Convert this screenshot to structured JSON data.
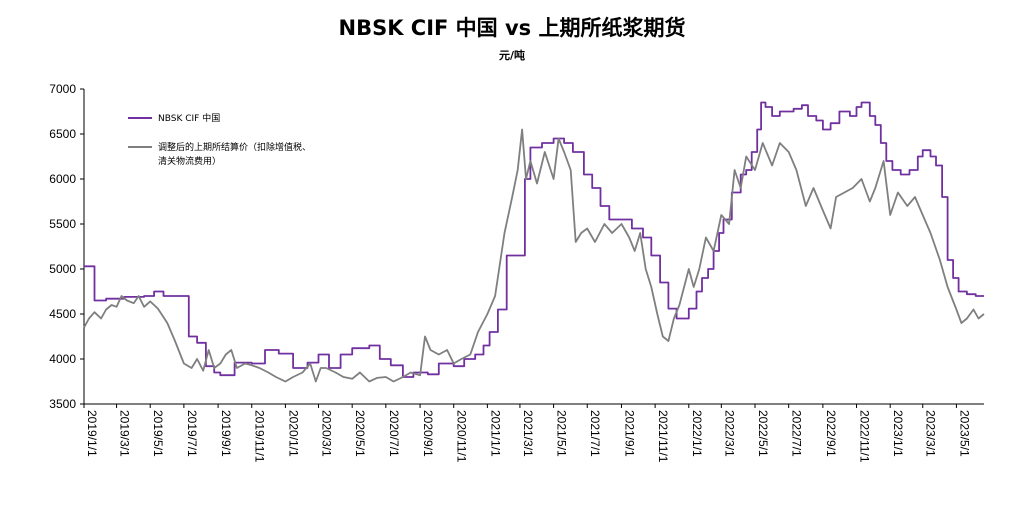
{
  "chart_data": {
    "type": "line",
    "title": "NBSK CIF 中国 vs 上期所纸浆期货",
    "unit_label": "元/吨",
    "xlabel": "",
    "ylabel": "",
    "ylim": [
      3500,
      7000
    ],
    "yticks": [
      3500,
      4000,
      4500,
      5000,
      5500,
      6000,
      6500,
      7000
    ],
    "xlim": [
      "2019-01-01",
      "2023-06-20"
    ],
    "xticks": [
      "2019/1/1",
      "2019/3/1",
      "2019/5/1",
      "2019/7/1",
      "2019/9/1",
      "2019/11/1",
      "2020/1/1",
      "2020/3/1",
      "2020/5/1",
      "2020/7/1",
      "2020/9/1",
      "2020/11/1",
      "2021/1/1",
      "2021/3/1",
      "2021/5/1",
      "2021/7/1",
      "2021/9/1",
      "2021/11/1",
      "2022/1/1",
      "2022/3/1",
      "2022/5/1",
      "2022/7/1",
      "2022/9/1",
      "2022/11/1",
      "2023/1/1",
      "2023/3/1",
      "2023/5/1"
    ],
    "grid": false,
    "legend_position": "top-left",
    "series": [
      {
        "name": "NBSK CIF 中国",
        "color": "#7030a0",
        "style": "step",
        "points": [
          [
            "2019-01-01",
            5030
          ],
          [
            "2019-01-20",
            4650
          ],
          [
            "2019-02-10",
            4670
          ],
          [
            "2019-03-15",
            4690
          ],
          [
            "2019-04-20",
            4700
          ],
          [
            "2019-05-08",
            4750
          ],
          [
            "2019-05-25",
            4700
          ],
          [
            "2019-06-15",
            4700
          ],
          [
            "2019-07-10",
            4250
          ],
          [
            "2019-07-25",
            4180
          ],
          [
            "2019-08-10",
            3920
          ],
          [
            "2019-08-25",
            3850
          ],
          [
            "2019-09-05",
            3820
          ],
          [
            "2019-10-01",
            3960
          ],
          [
            "2019-11-01",
            3950
          ],
          [
            "2019-11-25",
            4100
          ],
          [
            "2019-12-20",
            4060
          ],
          [
            "2020-01-15",
            3900
          ],
          [
            "2020-02-10",
            3960
          ],
          [
            "2020-03-01",
            4050
          ],
          [
            "2020-03-20",
            3900
          ],
          [
            "2020-04-10",
            4050
          ],
          [
            "2020-05-01",
            4120
          ],
          [
            "2020-06-01",
            4150
          ],
          [
            "2020-06-20",
            4000
          ],
          [
            "2020-07-10",
            3930
          ],
          [
            "2020-08-01",
            3800
          ],
          [
            "2020-08-20",
            3850
          ],
          [
            "2020-09-15",
            3830
          ],
          [
            "2020-10-05",
            3950
          ],
          [
            "2020-11-01",
            3920
          ],
          [
            "2020-11-20",
            4000
          ],
          [
            "2020-12-10",
            4050
          ],
          [
            "2020-12-25",
            4150
          ],
          [
            "2021-01-05",
            4300
          ],
          [
            "2021-01-20",
            4550
          ],
          [
            "2021-02-05",
            5150
          ],
          [
            "2021-02-20",
            5150
          ],
          [
            "2021-03-01",
            5150
          ],
          [
            "2021-03-10",
            6000
          ],
          [
            "2021-03-20",
            6350
          ],
          [
            "2021-04-10",
            6400
          ],
          [
            "2021-05-01",
            6450
          ],
          [
            "2021-05-20",
            6400
          ],
          [
            "2021-06-05",
            6300
          ],
          [
            "2021-06-25",
            6050
          ],
          [
            "2021-07-10",
            5900
          ],
          [
            "2021-07-25",
            5700
          ],
          [
            "2021-08-10",
            5550
          ],
          [
            "2021-09-01",
            5550
          ],
          [
            "2021-09-20",
            5450
          ],
          [
            "2021-10-10",
            5350
          ],
          [
            "2021-10-25",
            5150
          ],
          [
            "2021-11-10",
            4850
          ],
          [
            "2021-11-25",
            4560
          ],
          [
            "2021-12-10",
            4450
          ],
          [
            "2022-01-01",
            4560
          ],
          [
            "2022-01-15",
            4750
          ],
          [
            "2022-01-25",
            4900
          ],
          [
            "2022-02-05",
            5000
          ],
          [
            "2022-02-15",
            5200
          ],
          [
            "2022-02-25",
            5400
          ],
          [
            "2022-03-05",
            5550
          ],
          [
            "2022-03-20",
            5850
          ],
          [
            "2022-04-05",
            6050
          ],
          [
            "2022-04-15",
            6100
          ],
          [
            "2022-04-25",
            6300
          ],
          [
            "2022-05-05",
            6550
          ],
          [
            "2022-05-12",
            6850
          ],
          [
            "2022-05-20",
            6800
          ],
          [
            "2022-06-01",
            6700
          ],
          [
            "2022-06-15",
            6750
          ],
          [
            "2022-07-10",
            6780
          ],
          [
            "2022-07-25",
            6820
          ],
          [
            "2022-08-05",
            6700
          ],
          [
            "2022-08-20",
            6650
          ],
          [
            "2022-09-01",
            6550
          ],
          [
            "2022-09-15",
            6620
          ],
          [
            "2022-10-01",
            6750
          ],
          [
            "2022-10-20",
            6700
          ],
          [
            "2022-11-01",
            6800
          ],
          [
            "2022-11-10",
            6850
          ],
          [
            "2022-11-25",
            6700
          ],
          [
            "2022-12-05",
            6600
          ],
          [
            "2022-12-15",
            6400
          ],
          [
            "2022-12-25",
            6200
          ],
          [
            "2023-01-05",
            6100
          ],
          [
            "2023-01-20",
            6050
          ],
          [
            "2023-02-05",
            6100
          ],
          [
            "2023-02-20",
            6250
          ],
          [
            "2023-03-01",
            6320
          ],
          [
            "2023-03-15",
            6250
          ],
          [
            "2023-03-25",
            6150
          ],
          [
            "2023-04-05",
            5800
          ],
          [
            "2023-04-15",
            5100
          ],
          [
            "2023-04-25",
            4900
          ],
          [
            "2023-05-05",
            4750
          ],
          [
            "2023-05-20",
            4720
          ],
          [
            "2023-06-05",
            4700
          ],
          [
            "2023-06-20",
            4700
          ]
        ]
      },
      {
        "name": "调整后的上期所结算价（扣除增值税、清关物流费用）",
        "color": "#7f7f7f",
        "style": "line",
        "points": [
          [
            "2019-01-01",
            4350
          ],
          [
            "2019-01-10",
            4450
          ],
          [
            "2019-01-20",
            4520
          ],
          [
            "2019-02-01",
            4450
          ],
          [
            "2019-02-10",
            4550
          ],
          [
            "2019-02-20",
            4600
          ],
          [
            "2019-03-01",
            4580
          ],
          [
            "2019-03-10",
            4700
          ],
          [
            "2019-03-20",
            4650
          ],
          [
            "2019-04-01",
            4620
          ],
          [
            "2019-04-10",
            4700
          ],
          [
            "2019-04-20",
            4580
          ],
          [
            "2019-05-01",
            4640
          ],
          [
            "2019-05-15",
            4560
          ],
          [
            "2019-06-01",
            4400
          ],
          [
            "2019-06-15",
            4200
          ],
          [
            "2019-07-01",
            3950
          ],
          [
            "2019-07-15",
            3900
          ],
          [
            "2019-07-25",
            4000
          ],
          [
            "2019-08-05",
            3870
          ],
          [
            "2019-08-15",
            4100
          ],
          [
            "2019-08-25",
            3900
          ],
          [
            "2019-09-05",
            3950
          ],
          [
            "2019-09-15",
            4050
          ],
          [
            "2019-09-25",
            4100
          ],
          [
            "2019-10-05",
            3900
          ],
          [
            "2019-10-20",
            3950
          ],
          [
            "2019-11-01",
            3930
          ],
          [
            "2019-11-15",
            3900
          ],
          [
            "2019-12-01",
            3850
          ],
          [
            "2019-12-15",
            3800
          ],
          [
            "2020-01-01",
            3750
          ],
          [
            "2020-01-15",
            3800
          ],
          [
            "2020-02-01",
            3850
          ],
          [
            "2020-02-15",
            3950
          ],
          [
            "2020-02-25",
            3750
          ],
          [
            "2020-03-05",
            3900
          ],
          [
            "2020-03-15",
            3900
          ],
          [
            "2020-04-01",
            3850
          ],
          [
            "2020-04-15",
            3800
          ],
          [
            "2020-05-01",
            3780
          ],
          [
            "2020-05-15",
            3850
          ],
          [
            "2020-06-01",
            3750
          ],
          [
            "2020-06-15",
            3790
          ],
          [
            "2020-07-01",
            3800
          ],
          [
            "2020-07-15",
            3750
          ],
          [
            "2020-08-01",
            3800
          ],
          [
            "2020-08-15",
            3850
          ],
          [
            "2020-09-01",
            3820
          ],
          [
            "2020-09-10",
            4250
          ],
          [
            "2020-09-20",
            4100
          ],
          [
            "2020-10-05",
            4050
          ],
          [
            "2020-10-20",
            4100
          ],
          [
            "2020-11-01",
            3950
          ],
          [
            "2020-11-15",
            4000
          ],
          [
            "2020-12-01",
            4050
          ],
          [
            "2020-12-15",
            4300
          ],
          [
            "2021-01-01",
            4500
          ],
          [
            "2021-01-15",
            4700
          ],
          [
            "2021-02-01",
            5400
          ],
          [
            "2021-02-15",
            5800
          ],
          [
            "2021-02-25",
            6100
          ],
          [
            "2021-03-05",
            6550
          ],
          [
            "2021-03-12",
            6000
          ],
          [
            "2021-03-20",
            6200
          ],
          [
            "2021-04-01",
            5950
          ],
          [
            "2021-04-15",
            6300
          ],
          [
            "2021-05-01",
            6000
          ],
          [
            "2021-05-10",
            6450
          ],
          [
            "2021-05-20",
            6300
          ],
          [
            "2021-06-01",
            6100
          ],
          [
            "2021-06-10",
            5300
          ],
          [
            "2021-06-20",
            5400
          ],
          [
            "2021-07-01",
            5450
          ],
          [
            "2021-07-15",
            5300
          ],
          [
            "2021-08-01",
            5500
          ],
          [
            "2021-08-15",
            5400
          ],
          [
            "2021-09-01",
            5500
          ],
          [
            "2021-09-15",
            5350
          ],
          [
            "2021-09-25",
            5200
          ],
          [
            "2021-10-05",
            5400
          ],
          [
            "2021-10-15",
            5000
          ],
          [
            "2021-10-25",
            4800
          ],
          [
            "2021-11-05",
            4500
          ],
          [
            "2021-11-15",
            4250
          ],
          [
            "2021-11-25",
            4200
          ],
          [
            "2021-12-05",
            4450
          ],
          [
            "2021-12-15",
            4600
          ],
          [
            "2022-01-01",
            5000
          ],
          [
            "2022-01-10",
            4800
          ],
          [
            "2022-01-20",
            5000
          ],
          [
            "2022-02-01",
            5350
          ],
          [
            "2022-02-15",
            5200
          ],
          [
            "2022-03-01",
            5600
          ],
          [
            "2022-03-15",
            5500
          ],
          [
            "2022-03-25",
            6100
          ],
          [
            "2022-04-05",
            5900
          ],
          [
            "2022-04-15",
            6250
          ],
          [
            "2022-05-01",
            6100
          ],
          [
            "2022-05-15",
            6400
          ],
          [
            "2022-06-01",
            6150
          ],
          [
            "2022-06-15",
            6400
          ],
          [
            "2022-07-01",
            6300
          ],
          [
            "2022-07-15",
            6100
          ],
          [
            "2022-08-01",
            5700
          ],
          [
            "2022-08-15",
            5900
          ],
          [
            "2022-09-01",
            5650
          ],
          [
            "2022-09-15",
            5450
          ],
          [
            "2022-09-25",
            5800
          ],
          [
            "2022-10-10",
            5850
          ],
          [
            "2022-10-25",
            5900
          ],
          [
            "2022-11-10",
            6000
          ],
          [
            "2022-11-25",
            5750
          ],
          [
            "2022-12-05",
            5900
          ],
          [
            "2022-12-20",
            6200
          ],
          [
            "2023-01-01",
            5600
          ],
          [
            "2023-01-15",
            5850
          ],
          [
            "2023-02-01",
            5700
          ],
          [
            "2023-02-15",
            5800
          ],
          [
            "2023-03-01",
            5600
          ],
          [
            "2023-03-15",
            5400
          ],
          [
            "2023-04-01",
            5100
          ],
          [
            "2023-04-15",
            4800
          ],
          [
            "2023-05-01",
            4550
          ],
          [
            "2023-05-10",
            4400
          ],
          [
            "2023-05-20",
            4450
          ],
          [
            "2023-06-01",
            4550
          ],
          [
            "2023-06-10",
            4450
          ],
          [
            "2023-06-20",
            4500
          ]
        ]
      }
    ]
  }
}
